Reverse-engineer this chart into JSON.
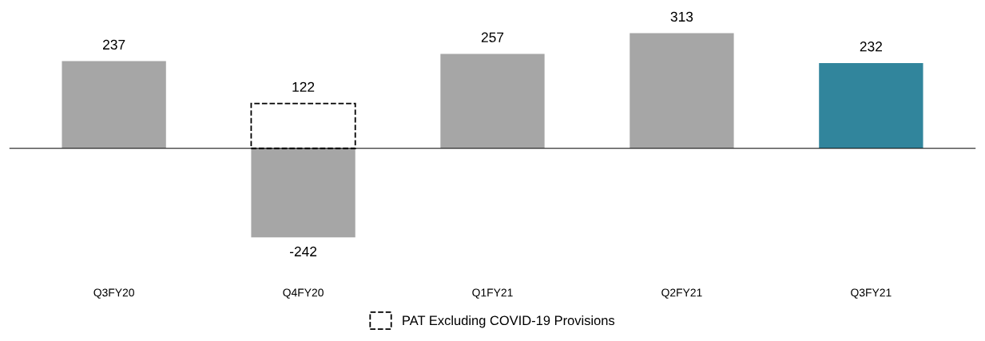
{
  "chart_data": {
    "type": "bar",
    "categories": [
      "Q3FY20",
      "Q4FY20",
      "Q1FY21",
      "Q2FY21",
      "Q3FY21"
    ],
    "series": [
      {
        "colors": [
          "#a6a6a6",
          "#a6a6a6",
          "#a6a6a6",
          "#a6a6a6",
          "#31859c"
        ],
        "color": "#a6a6a6",
        "values": [
          237,
          -242,
          257,
          313,
          232
        ]
      },
      {
        "name": "PAT Excluding COVID-19 Provisions",
        "color": "#000000",
        "line_style": "dashed",
        "values": [
          null,
          122,
          null,
          null,
          null
        ]
      }
    ],
    "data_labels": true,
    "legend": "bottom",
    "grid": false
  }
}
